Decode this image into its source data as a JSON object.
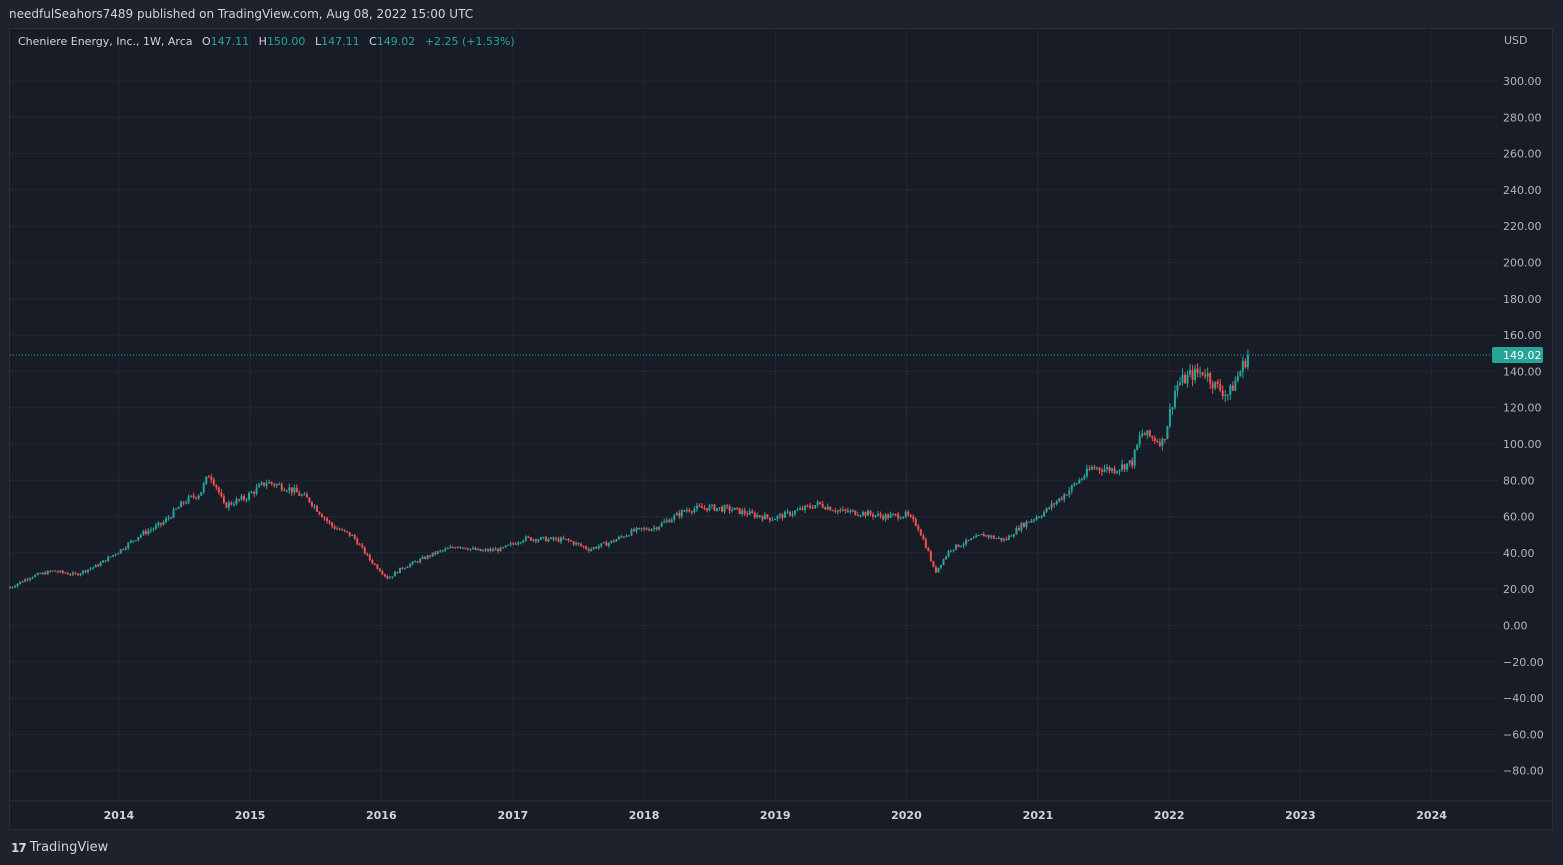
{
  "header": {
    "published_line": "needfulSeahors7489 published on TradingView.com, Aug 08, 2022 15:00 UTC"
  },
  "legend": {
    "symbol": "Cheniere Energy, Inc., 1W, Arca",
    "o_label": "O",
    "o_value": "147.11",
    "h_label": "H",
    "h_value": "150.00",
    "l_label": "L",
    "l_value": "147.11",
    "c_label": "C",
    "c_value": "149.02",
    "change": "+2.25 (+1.53%)"
  },
  "footer": {
    "brand_mark": "17",
    "brand": "TradingView"
  },
  "colors": {
    "up": "#26a69a",
    "down": "#ef5350",
    "background": "#181c27",
    "grid": "#242833",
    "price_line": "#26a69a"
  },
  "chart_data": {
    "type": "candlestick",
    "currency": "USD",
    "interval": "1W",
    "last_price": 149.02,
    "last_price_label": "149.02",
    "ylim": [
      -90,
      310
    ],
    "yticks": [
      300,
      280,
      260,
      240,
      220,
      200,
      180,
      160,
      140,
      120,
      100,
      80,
      60,
      40,
      20,
      0,
      -20,
      -40,
      -60,
      -80
    ],
    "ytick_labels": [
      "300.00",
      "280.00",
      "260.00",
      "240.00",
      "220.00",
      "200.00",
      "180.00",
      "160.00",
      "140.00",
      "120.00",
      "100.00",
      "80.00",
      "60.00",
      "40.00",
      "20.00",
      "0.00",
      "−20.00",
      "−40.00",
      "−60.00",
      "−80.00"
    ],
    "xlim": [
      "2013-03-04",
      "2024-07-01"
    ],
    "xticks": [
      "2014-01-01",
      "2015-01-01",
      "2016-01-01",
      "2017-01-01",
      "2018-01-01",
      "2019-01-01",
      "2020-01-01",
      "2021-01-01",
      "2022-01-01",
      "2023-01-01",
      "2024-01-01"
    ],
    "xtick_labels": [
      "2014",
      "2015",
      "2016",
      "2017",
      "2018",
      "2019",
      "2020",
      "2021",
      "2022",
      "2023",
      "2024"
    ],
    "grid": true,
    "close_path": [
      [
        "2013-03-04",
        21
      ],
      [
        "2013-05-01",
        27
      ],
      [
        "2013-07-01",
        30
      ],
      [
        "2013-09-01",
        28
      ],
      [
        "2013-11-01",
        33
      ],
      [
        "2014-01-01",
        41
      ],
      [
        "2014-03-01",
        50
      ],
      [
        "2014-05-01",
        56
      ],
      [
        "2014-07-01",
        68
      ],
      [
        "2014-08-15",
        73
      ],
      [
        "2014-09-10",
        84
      ],
      [
        "2014-10-01",
        76
      ],
      [
        "2014-10-20",
        66
      ],
      [
        "2014-12-15",
        70
      ],
      [
        "2015-02-15",
        79
      ],
      [
        "2015-04-15",
        76
      ],
      [
        "2015-06-15",
        69
      ],
      [
        "2015-08-15",
        55
      ],
      [
        "2015-10-15",
        49
      ],
      [
        "2015-12-01",
        36
      ],
      [
        "2016-01-20",
        26
      ],
      [
        "2016-03-01",
        32
      ],
      [
        "2016-06-01",
        40
      ],
      [
        "2016-08-01",
        44
      ],
      [
        "2016-10-01",
        41
      ],
      [
        "2016-12-01",
        42
      ],
      [
        "2017-02-01",
        48
      ],
      [
        "2017-06-01",
        47
      ],
      [
        "2017-08-01",
        42
      ],
      [
        "2017-10-01",
        46
      ],
      [
        "2017-12-01",
        52
      ],
      [
        "2018-02-01",
        54
      ],
      [
        "2018-05-01",
        64
      ],
      [
        "2018-07-01",
        65
      ],
      [
        "2018-09-01",
        64
      ],
      [
        "2018-11-01",
        61
      ],
      [
        "2018-12-25",
        59
      ],
      [
        "2019-03-01",
        63
      ],
      [
        "2019-05-01",
        67
      ],
      [
        "2019-07-01",
        63
      ],
      [
        "2019-09-01",
        62
      ],
      [
        "2019-11-01",
        60
      ],
      [
        "2019-12-31",
        61
      ],
      [
        "2020-02-01",
        55
      ],
      [
        "2020-03-01",
        41
      ],
      [
        "2020-03-20",
        29
      ],
      [
        "2020-05-01",
        42
      ],
      [
        "2020-08-01",
        50
      ],
      [
        "2020-10-01",
        47
      ],
      [
        "2020-11-15",
        55
      ],
      [
        "2021-01-15",
        62
      ],
      [
        "2021-03-15",
        72
      ],
      [
        "2021-06-01",
        87
      ],
      [
        "2021-08-01",
        86
      ],
      [
        "2021-09-20",
        90
      ],
      [
        "2021-10-15",
        106
      ],
      [
        "2021-12-15",
        101
      ],
      [
        "2022-01-20",
        132
      ],
      [
        "2022-03-01",
        138
      ],
      [
        "2022-04-10",
        140
      ],
      [
        "2022-05-10",
        132
      ],
      [
        "2022-06-15",
        127
      ],
      [
        "2022-07-10",
        137
      ],
      [
        "2022-08-08",
        149.02
      ]
    ]
  }
}
